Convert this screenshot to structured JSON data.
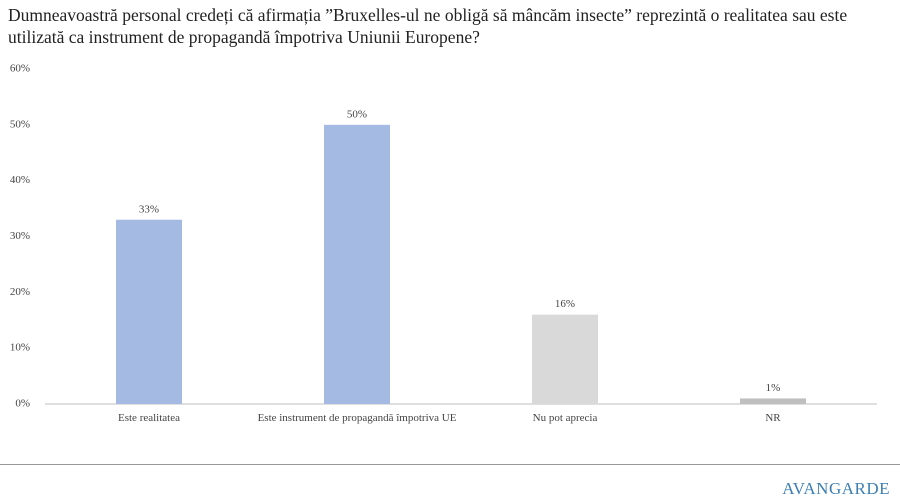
{
  "chart_data": {
    "type": "bar",
    "title": "Dumneavoastră personal credeți că afirmația ”Bruxelles-ul ne obligă să mâncăm insecte” reprezintă o realitatea sau este utilizată ca instrument de propagandă împotriva Uniunii Europene?",
    "categories": [
      "Este realitatea",
      "Este instrument de propagandă împotriva UE",
      "Nu pot aprecia",
      "NR"
    ],
    "values": [
      33,
      50,
      16,
      1
    ],
    "value_labels": [
      "33%",
      "50%",
      "16%",
      "1%"
    ],
    "colors": [
      "#a4bae3",
      "#a4bae3",
      "#d9d9d9",
      "#bfbfbf"
    ],
    "ylim": [
      0,
      60
    ],
    "yticks": [
      {
        "value": 0,
        "label": "0%"
      },
      {
        "value": 10,
        "label": "10%"
      },
      {
        "value": 20,
        "label": "20%"
      },
      {
        "value": 30,
        "label": "30%"
      },
      {
        "value": 40,
        "label": "40%"
      },
      {
        "value": 50,
        "label": "50%"
      },
      {
        "value": 60,
        "label": "60%"
      }
    ],
    "grid": false
  },
  "logo": "AVANGARDE"
}
